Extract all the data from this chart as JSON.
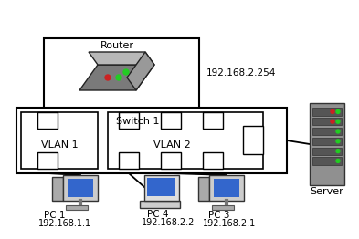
{
  "background_color": "#ffffff",
  "router_label": "Router",
  "router_ip": "192.168.2.254",
  "switch_label": "Switch 1",
  "vlan1_label": "VLAN 1",
  "vlan2_label": "VLAN 2",
  "server_label": "Server",
  "pc1_label": "PC 1",
  "pc1_ip": "192.168.1.1",
  "pc4_label": "PC 4",
  "pc4_ip": "192.168.2.2",
  "pc3_label": "PC 3",
  "pc3_ip": "192.168.2.1",
  "line_color": "#000000",
  "label_fontsize": 8,
  "ip_fontsize": 7
}
